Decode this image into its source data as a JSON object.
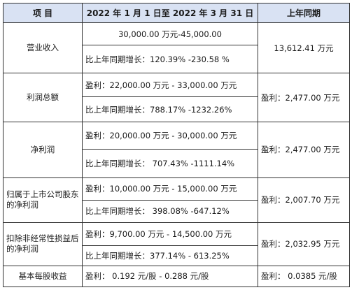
{
  "header": {
    "item": "项    目",
    "current": "2022 年 1 月 1 日至 2022 年 3 月 31 日",
    "previous": "上年同期"
  },
  "rows": [
    {
      "item": "营业收入",
      "current_value": "30,000.00 万元-45,000.00",
      "current_change": "比上年同期增长：120.39% -230.58 %",
      "previous": "13,612.41 万元"
    },
    {
      "item": "利润总额",
      "current_value": "盈利：22,000.00 万元 - 33,000.00 万元",
      "current_change": "比上年同期增长：788.17% -1232.26%",
      "previous": "盈利：2,477.00 万元"
    },
    {
      "item": "净利润",
      "current_value": "盈利：20,000.00 万元 - 30,000.00 万元",
      "current_change": "比上年同期增长： 707.43% -1111.14%",
      "previous": "盈利：2,477.00 万元"
    },
    {
      "item": "归属于上市公司股东的净利润",
      "current_value": "盈利：10,000.00 万元 - 15,000.00 万元",
      "current_change": "比上年同期增长： 398.08% -647.12%",
      "previous": "盈利：2,007.70 万元"
    },
    {
      "item": "扣除非经常性损益后的净利润",
      "current_value": "盈利：9,700.00 万元 - 14,500.00 万元",
      "current_change": "比上年同期增长：377.14% - 613.25%",
      "previous": "盈利：2,032.95 万元"
    }
  ],
  "eps": {
    "item": "基本每股收益",
    "current": "盈利： 0.192 元/股 - 0.288 元/股",
    "previous": "盈利： 0.0385 元/股"
  }
}
